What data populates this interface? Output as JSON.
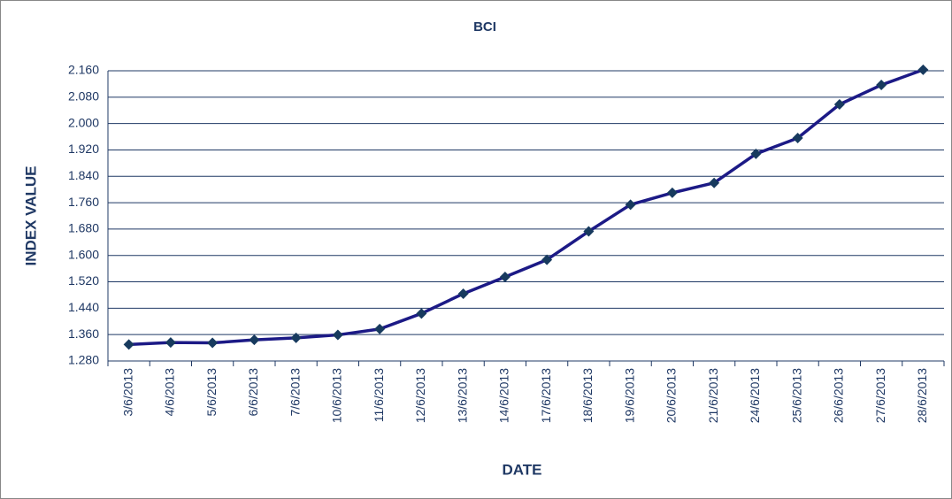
{
  "chart_data": {
    "type": "line",
    "title": "BCI",
    "x_label": "DATE",
    "y_label": "INDEX VALUE",
    "categories": [
      "3/6/2013",
      "4/6/2013",
      "5/6/2013",
      "6/6/2013",
      "7/6/2013",
      "10/6/2013",
      "11/6/2013",
      "12/6/2013",
      "13/6/2013",
      "14/6/2013",
      "17/6/2013",
      "18/6/2013",
      "19/6/2013",
      "20/6/2013",
      "21/6/2013",
      "24/6/2013",
      "25/6/2013",
      "26/6/2013",
      "27/6/2013",
      "28/6/2013"
    ],
    "series": [
      {
        "name": "BCI",
        "color": "#1c1a86",
        "marker_color": "#173a5e",
        "values": [
          1330,
          1336,
          1335,
          1344,
          1350,
          1359,
          1377,
          1424,
          1484,
          1535,
          1587,
          1673,
          1754,
          1790,
          1820,
          1908,
          1956,
          2058,
          2117,
          2163
        ]
      }
    ],
    "ylim": [
      1280,
      2160
    ],
    "yticks": [
      {
        "value": 1280,
        "label": "1.280"
      },
      {
        "value": 1360,
        "label": "1.360"
      },
      {
        "value": 1440,
        "label": "1.440"
      },
      {
        "value": 1520,
        "label": "1.520"
      },
      {
        "value": 1600,
        "label": "1.600"
      },
      {
        "value": 1680,
        "label": "1.680"
      },
      {
        "value": 1760,
        "label": "1.760"
      },
      {
        "value": 1840,
        "label": "1.840"
      },
      {
        "value": 1920,
        "label": "1.920"
      },
      {
        "value": 2000,
        "label": "2.000"
      },
      {
        "value": 2080,
        "label": "2.080"
      },
      {
        "value": 2160,
        "label": "2.160"
      }
    ],
    "grid": true
  }
}
